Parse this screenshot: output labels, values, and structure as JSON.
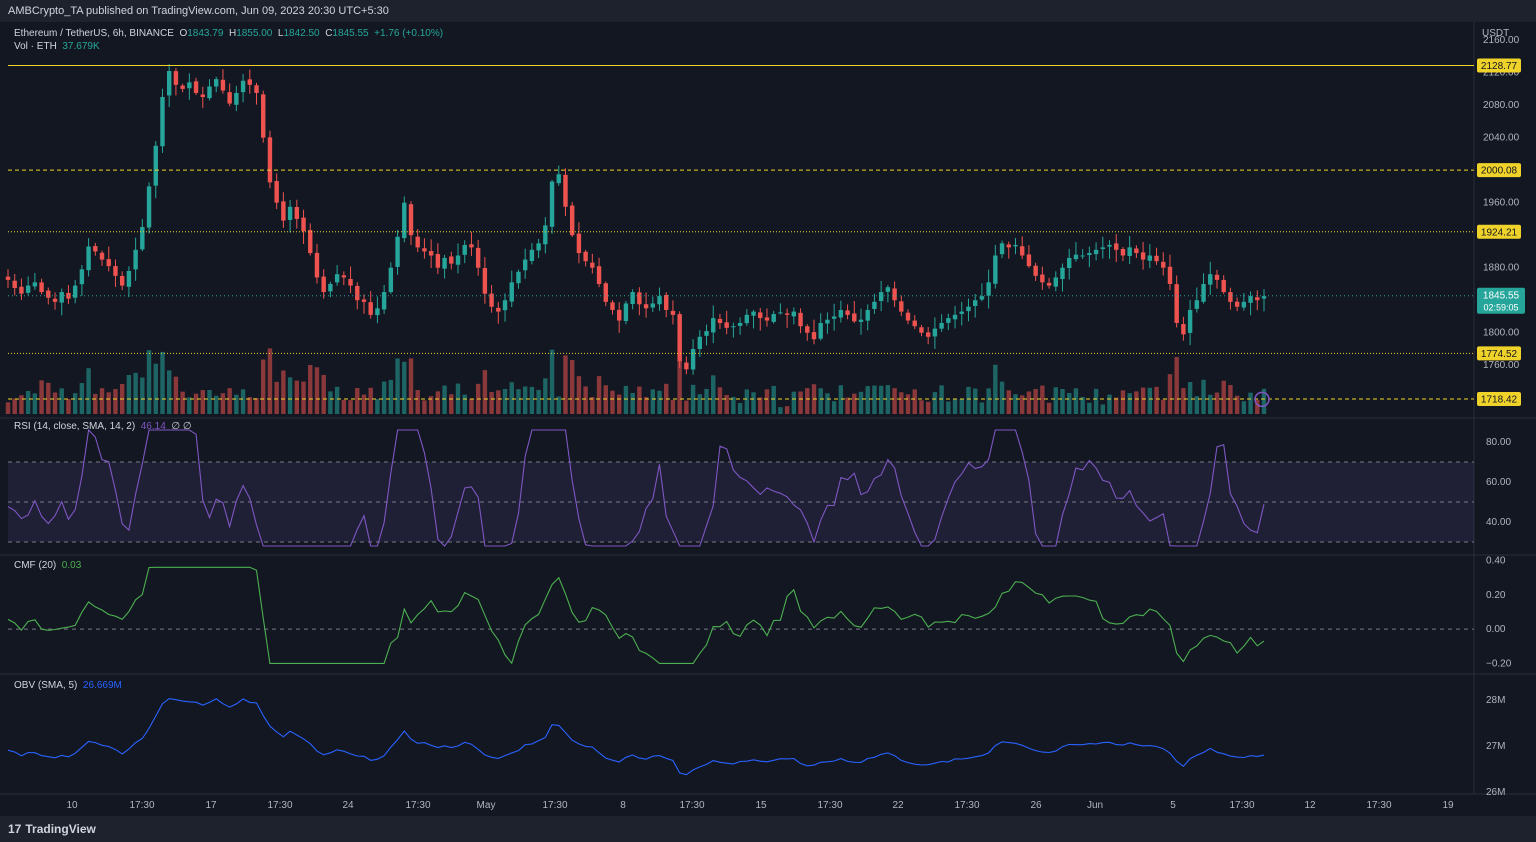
{
  "header": {
    "publish_note": "AMBCrypto_TA published on TradingView.com, Jun 09, 2023 20:30 UTC+5:30"
  },
  "footer": {
    "brand": "TradingView"
  },
  "legend": {
    "symbol": "Ethereum / TetherUS, 6h, BINANCE",
    "open_label": "O",
    "open": "1843.79",
    "high_label": "H",
    "high": "1855.00",
    "low_label": "L",
    "low": "1842.50",
    "close_label": "C",
    "close": "1845.55",
    "change": "+1.76 (+0.10%)",
    "vol_label": "Vol · ETH",
    "vol": "37.679K"
  },
  "indicators": {
    "rsi_label": "RSI (14, close, SMA, 14, 2)",
    "rsi_value": "46.14",
    "rsi_extra": "∅ ∅",
    "cmf_label": "CMF (20)",
    "cmf_value": "0.03",
    "obv_label": "OBV (SMA, 5)",
    "obv_value": "26.669M"
  },
  "colors": {
    "bg": "#131722",
    "up": "#26a69a",
    "down": "#ef5350",
    "level": "#f0d32a",
    "rsi": "#7e57c2",
    "cmf": "#4caf50",
    "obv": "#2962ff",
    "axis_text": "#b2b5be",
    "grid": "#2a2e39"
  },
  "chart_data": [
    {
      "type": "candlestick",
      "title": "Ethereum / TetherUS, 6h, BINANCE",
      "currency": "USDT",
      "ylim": [
        1700,
        2170
      ],
      "y_ticks": [
        "2160.00",
        "2120.00",
        "2080.00",
        "2040.00",
        "1960.00",
        "1880.00",
        "1800.00",
        "1760.00"
      ],
      "x_ticks": [
        "10",
        "17:30",
        "17",
        "17:30",
        "24",
        "17:30",
        "May",
        "17:30",
        "8",
        "17:30",
        "15",
        "17:30",
        "22",
        "17:30",
        "26",
        "Jun",
        "5",
        "17:30",
        "12",
        "17:30",
        "19",
        "17:30",
        "26M"
      ],
      "levels": [
        {
          "value": 2128.77,
          "label": "2128.77",
          "style": "solid"
        },
        {
          "value": 2000.08,
          "label": "2000.08",
          "style": "dashed"
        },
        {
          "value": 1924.21,
          "label": "1924.21",
          "style": "dotted"
        },
        {
          "value": 1774.52,
          "label": "1774.52",
          "style": "dotted"
        },
        {
          "value": 1718.42,
          "label": "1718.42",
          "style": "dashed"
        }
      ],
      "last_price": "1845.55",
      "countdown": "02:59:05",
      "close_path": [
        1865,
        1855,
        1848,
        1858,
        1862,
        1850,
        1843,
        1838,
        1850,
        1842,
        1858,
        1878,
        1906,
        1900,
        1890,
        1882,
        1870,
        1858,
        1876,
        1902,
        1930,
        1980,
        2030,
        2090,
        2122,
        2105,
        2100,
        2108,
        2095,
        2090,
        2103,
        2112,
        2098,
        2082,
        2095,
        2110,
        2105,
        2095,
        2040,
        1985,
        1960,
        1938,
        1955,
        1940,
        1925,
        1898,
        1868,
        1850,
        1860,
        1872,
        1868,
        1858,
        1840,
        1838,
        1822,
        1830,
        1850,
        1880,
        1918,
        1960,
        1920,
        1905,
        1900,
        1895,
        1880,
        1892,
        1885,
        1895,
        1908,
        1905,
        1880,
        1848,
        1832,
        1826,
        1840,
        1862,
        1875,
        1890,
        1902,
        1910,
        1932,
        1986,
        1995,
        1955,
        1920,
        1898,
        1888,
        1880,
        1860,
        1838,
        1828,
        1815,
        1836,
        1850,
        1835,
        1830,
        1836,
        1845,
        1828,
        1822,
        1765,
        1755,
        1780,
        1795,
        1802,
        1818,
        1812,
        1806,
        1808,
        1812,
        1822,
        1826,
        1818,
        1815,
        1823,
        1825,
        1822,
        1826,
        1808,
        1800,
        1792,
        1812,
        1816,
        1820,
        1828,
        1822,
        1814,
        1816,
        1828,
        1838,
        1850,
        1856,
        1840,
        1826,
        1815,
        1808,
        1800,
        1795,
        1805,
        1812,
        1818,
        1822,
        1826,
        1832,
        1840,
        1845,
        1862,
        1895,
        1910,
        1905,
        1908,
        1895,
        1882,
        1870,
        1862,
        1858,
        1868,
        1880,
        1892,
        1896,
        1895,
        1898,
        1902,
        1905,
        1908,
        1902,
        1895,
        1905,
        1898,
        1890,
        1895,
        1888,
        1880,
        1860,
        1812,
        1798,
        1828,
        1840,
        1860,
        1872,
        1865,
        1850,
        1838,
        1832,
        1838,
        1845,
        1840,
        1845
      ],
      "x_range_bars": 210
    },
    {
      "type": "bar",
      "title": "Vol · ETH",
      "note": "volume histogram colored by candle direction",
      "last_value": "37.679K"
    },
    {
      "type": "line",
      "title": "RSI (14, close, SMA, 14, 2)",
      "ylim": [
        25,
        90
      ],
      "y_ticks": [
        "80.00",
        "60.00",
        "40.00"
      ],
      "band": [
        30,
        70
      ],
      "mid": 50,
      "last_value": "46.14"
    },
    {
      "type": "line",
      "title": "CMF (20)",
      "ylim": [
        -0.25,
        0.42
      ],
      "y_ticks": [
        "0.40",
        "0.20",
        "0.00",
        "−0.20"
      ],
      "zero": 0,
      "last_value": "0.03"
    },
    {
      "type": "line",
      "title": "OBV (SMA, 5)",
      "ylim": [
        26.0,
        28.5
      ],
      "y_ticks": [
        "28M",
        "27M",
        "26M"
      ],
      "last_value": "26.669M"
    }
  ]
}
